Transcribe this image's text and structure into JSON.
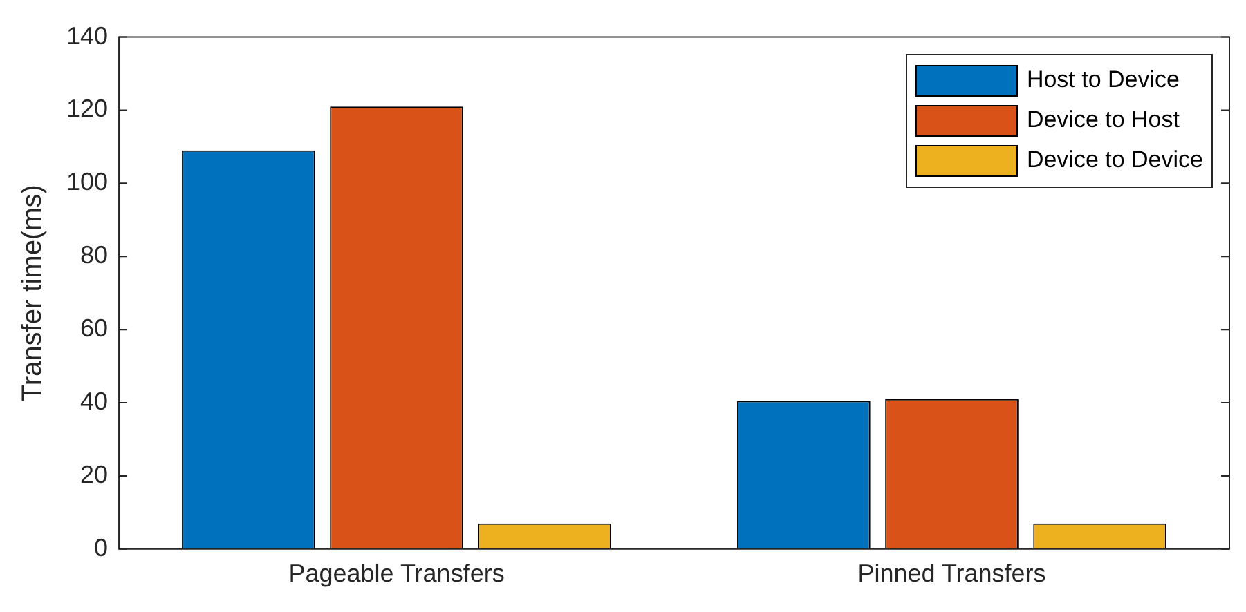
{
  "chart_data": {
    "type": "bar",
    "ylabel": "Transfer time(ms)",
    "categories": [
      "Pageable Transfers",
      "Pinned Transfers"
    ],
    "series": [
      {
        "name": "Host to Device",
        "color": "#0072bd",
        "values": [
          109,
          40.5
        ]
      },
      {
        "name": "Device to Host",
        "color": "#d95319",
        "values": [
          121,
          41
        ]
      },
      {
        "name": "Device to Device",
        "color": "#edb120",
        "values": [
          7,
          7
        ]
      }
    ],
    "ylim": [
      0,
      140
    ],
    "yticks": [
      0,
      20,
      40,
      60,
      80,
      100,
      120,
      140
    ],
    "grid": false,
    "legend": "top right"
  }
}
